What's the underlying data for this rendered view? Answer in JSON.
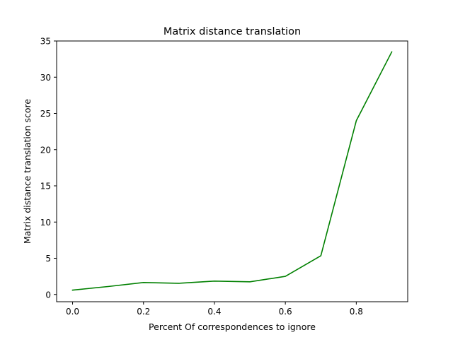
{
  "chart_data": {
    "type": "line",
    "title": "Matrix distance translation",
    "xlabel": "Percent Of correspondences to ignore",
    "ylabel": "Matrix distance translation score",
    "xlim": [
      -0.045,
      0.945
    ],
    "ylim": [
      -1.0,
      35.0
    ],
    "xticks": [
      0.0,
      0.2,
      0.4,
      0.6,
      0.8
    ],
    "xtick_labels": [
      "0.0",
      "0.2",
      "0.4",
      "0.6",
      "0.8"
    ],
    "yticks": [
      0,
      5,
      10,
      15,
      20,
      25,
      30,
      35
    ],
    "ytick_labels": [
      "0",
      "5",
      "10",
      "15",
      "20",
      "25",
      "30",
      "35"
    ],
    "grid": false,
    "series": [
      {
        "color": "#008000",
        "x": [
          0.0,
          0.1,
          0.2,
          0.3,
          0.4,
          0.5,
          0.6,
          0.7,
          0.8,
          0.9
        ],
        "y": [
          0.6,
          1.1,
          1.65,
          1.55,
          1.85,
          1.75,
          2.5,
          5.35,
          24.0,
          33.5
        ]
      }
    ]
  }
}
